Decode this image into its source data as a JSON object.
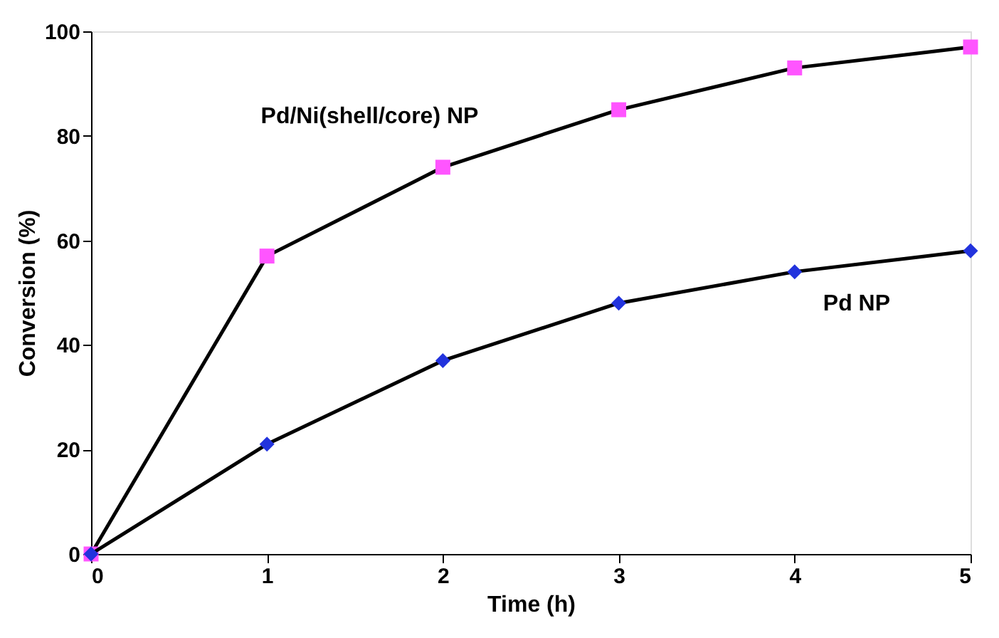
{
  "chart_data": {
    "type": "line",
    "xlabel": "Time (h)",
    "ylabel": "Conversion (%)",
    "x": [
      0,
      1,
      2,
      3,
      4,
      5
    ],
    "series": [
      {
        "name": "Pd/Ni(shell/core) NP",
        "color": "#ff55ff",
        "marker": "square",
        "values": [
          0,
          57,
          74,
          85,
          93,
          97
        ]
      },
      {
        "name": "Pd NP",
        "color": "#2233dd",
        "marker": "diamond",
        "values": [
          0,
          21,
          37,
          48,
          54,
          58
        ]
      }
    ],
    "xlim": [
      0,
      5
    ],
    "xticks": [
      0,
      1,
      2,
      3,
      4,
      5
    ],
    "ylim": [
      0,
      100
    ],
    "yticks": [
      0,
      20,
      40,
      60,
      80,
      100
    ],
    "grid": false,
    "line_style": "solid"
  }
}
